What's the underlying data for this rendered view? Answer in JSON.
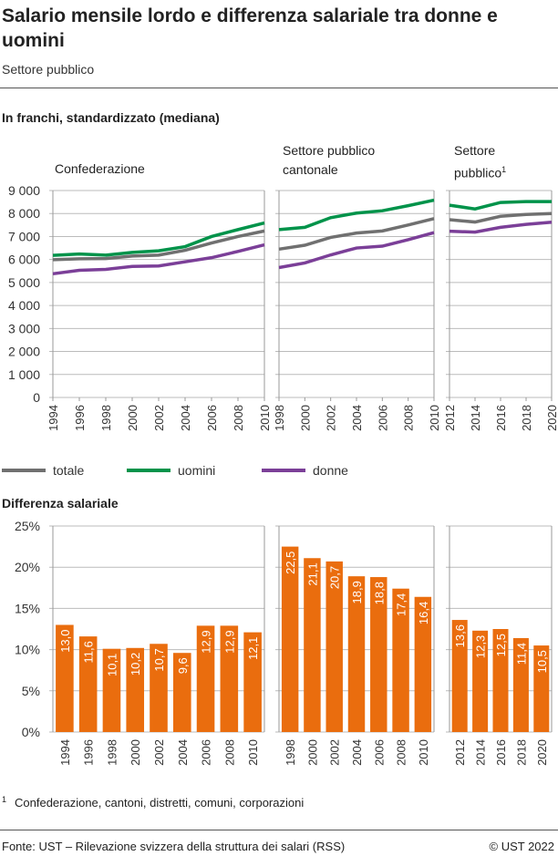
{
  "title": "Salario mensile lordo e differenza salariale tra donne e uomini",
  "subtitle": "Settore pubblico",
  "footnote_mark": "1",
  "footnote": "Confederazione, cantoni, distretti, comuni, corporazioni",
  "source": "Fonte: UST – Rilevazione svizzera della struttura dei salari (RSS)",
  "copyright": "© UST 2022",
  "colors": {
    "totale": "#707070",
    "uomini": "#00934a",
    "donne": "#7b3f98",
    "bars": "#ea6d0e"
  },
  "chart_data": [
    {
      "type": "line",
      "title": "In franchi, standardizzato (mediana)",
      "ylim": [
        0,
        9000
      ],
      "yticks": [
        "0",
        "1 000",
        "2 000",
        "3 000",
        "4 000",
        "5 000",
        "6 000",
        "7 000",
        "8 000",
        "9 000"
      ],
      "legend": [
        "totale",
        "uomini",
        "donne"
      ],
      "legend_placement": "bottom",
      "grid": true,
      "panels": [
        {
          "label": "Confederazione",
          "x": [
            "1994",
            "1996",
            "1998",
            "2000",
            "2002",
            "2004",
            "2006",
            "2008",
            "2010"
          ],
          "series": [
            {
              "name": "totale",
              "values": [
                5990,
                6030,
                6040,
                6150,
                6190,
                6400,
                6720,
                7000,
                7240
              ]
            },
            {
              "name": "uomini",
              "values": [
                6180,
                6240,
                6190,
                6310,
                6380,
                6560,
                7000,
                7300,
                7590
              ]
            },
            {
              "name": "donne",
              "values": [
                5380,
                5530,
                5570,
                5700,
                5720,
                5900,
                6080,
                6350,
                6640
              ]
            }
          ]
        },
        {
          "label": "Settore pubblico cantonale",
          "x": [
            "1998",
            "2000",
            "2002",
            "2004",
            "2006",
            "2008",
            "2010"
          ],
          "series": [
            {
              "name": "totale",
              "values": [
                6450,
                6620,
                6960,
                7150,
                7240,
                7500,
                7780
              ]
            },
            {
              "name": "uomini",
              "values": [
                7300,
                7400,
                7820,
                8020,
                8120,
                8340,
                8580
              ]
            },
            {
              "name": "donne",
              "values": [
                5650,
                5850,
                6200,
                6500,
                6580,
                6860,
                7170
              ]
            }
          ]
        },
        {
          "label": "Settore pubblico",
          "label_sup": "1",
          "x": [
            "2012",
            "2014",
            "2016",
            "2018",
            "2020"
          ],
          "series": [
            {
              "name": "totale",
              "values": [
                7730,
                7630,
                7880,
                7960,
                8000
              ]
            },
            {
              "name": "uomini",
              "values": [
                8360,
                8200,
                8480,
                8520,
                8520
              ]
            },
            {
              "name": "donne",
              "values": [
                7230,
                7190,
                7400,
                7530,
                7620
              ]
            }
          ]
        }
      ]
    },
    {
      "type": "bar",
      "title": "Differenza salariale",
      "ylim": [
        0,
        25
      ],
      "yticks": [
        "0%",
        "5%",
        "10%",
        "15%",
        "20%",
        "25%"
      ],
      "grid": true,
      "panels": [
        {
          "categories": [
            "1994",
            "1996",
            "1998",
            "2000",
            "2002",
            "2004",
            "2006",
            "2008",
            "2010"
          ],
          "values": [
            13.0,
            11.6,
            10.1,
            10.2,
            10.7,
            9.6,
            12.9,
            12.9,
            12.1
          ],
          "labels": [
            "13,0",
            "11,6",
            "10,1",
            "10,2",
            "10,7",
            "9,6",
            "12,9",
            "12,9",
            "12,1"
          ]
        },
        {
          "categories": [
            "1998",
            "2000",
            "2002",
            "2004",
            "2006",
            "2008",
            "2010"
          ],
          "values": [
            22.5,
            21.1,
            20.7,
            18.9,
            18.8,
            17.4,
            16.4
          ],
          "labels": [
            "22,5",
            "21,1",
            "20,7",
            "18,9",
            "18,8",
            "17,4",
            "16,4"
          ]
        },
        {
          "categories": [
            "2012",
            "2014",
            "2016",
            "2018",
            "2020"
          ],
          "values": [
            13.6,
            12.3,
            12.5,
            11.4,
            10.5
          ],
          "labels": [
            "13,6",
            "12,3",
            "12,5",
            "11,4",
            "10,5"
          ]
        }
      ]
    }
  ]
}
